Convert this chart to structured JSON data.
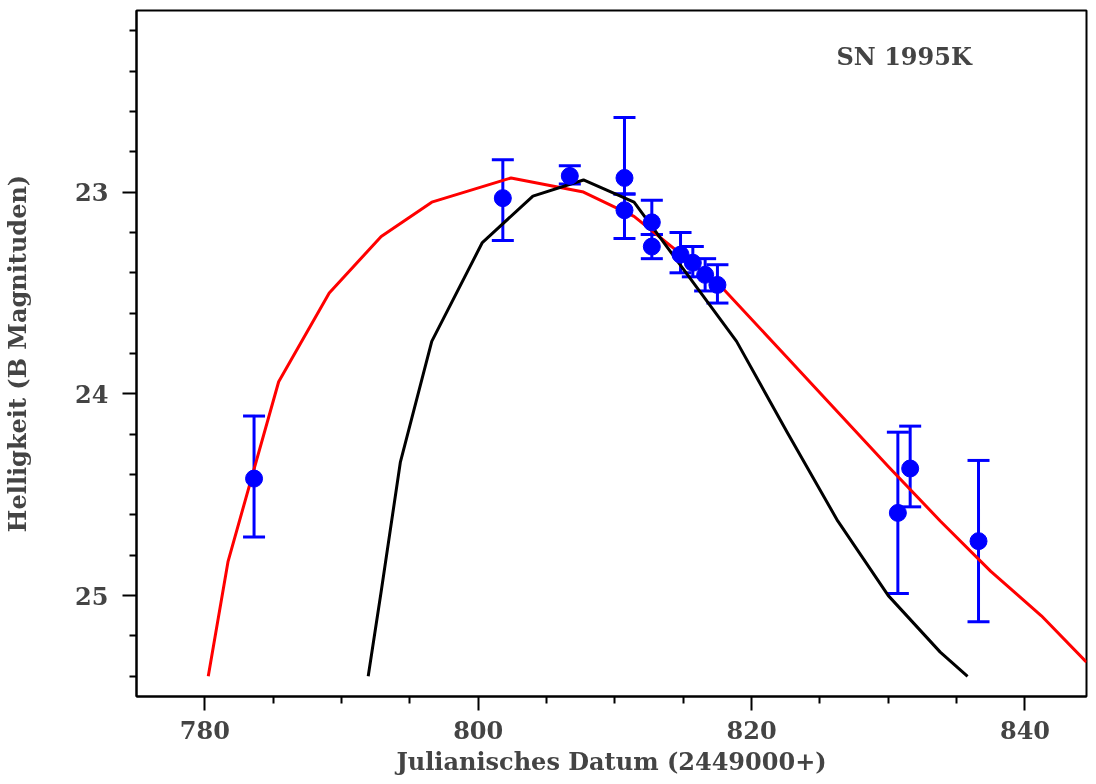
{
  "chart_data": {
    "type": "scatter",
    "xlabel": "Julianisches Datum (2449000+)",
    "ylabel": "Helligkeit (B Magnituden)",
    "annotations": [
      "SN 1995K"
    ],
    "xlim": [
      775,
      844.5
    ],
    "ylim": [
      25.5,
      22.1
    ],
    "xticks": [
      780,
      {
        "value": 785,
        "label": null
      },
      {
        "value": 790,
        "label": null
      },
      {
        "value": 795,
        "label": null
      },
      800,
      {
        "value": 805,
        "label": null
      },
      {
        "value": 810,
        "label": null
      },
      {
        "value": 815,
        "label": null
      },
      820,
      {
        "value": 825,
        "label": null
      },
      {
        "value": 830,
        "label": null
      },
      {
        "value": 835,
        "label": null
      },
      840
    ],
    "yticks": [
      {
        "value": 22.2,
        "label": null
      },
      {
        "value": 22.4,
        "label": null
      },
      {
        "value": 22.6,
        "label": null
      },
      {
        "value": 22.8,
        "label": null
      },
      23,
      {
        "value": 23.2,
        "label": null
      },
      {
        "value": 23.4,
        "label": null
      },
      {
        "value": 23.6,
        "label": null
      },
      {
        "value": 23.8,
        "label": null
      },
      24,
      {
        "value": 24.2,
        "label": null
      },
      {
        "value": 24.4,
        "label": null
      },
      {
        "value": 24.6,
        "label": null
      },
      {
        "value": 24.8,
        "label": null
      },
      25,
      {
        "value": 25.2,
        "label": null
      },
      {
        "value": 25.4,
        "label": null
      }
    ],
    "grid": false,
    "series": [
      {
        "type": "line",
        "color": "#ff0000",
        "marker": "none",
        "x": [
          780.25,
          781.7,
          785.4,
          789.1,
          792.9,
          796.6,
          802.4,
          807.7,
          811.4,
          817.8,
          822.6,
          826.3,
          830.0,
          833.8,
          837.5,
          841.2,
          844.5
        ],
        "values": [
          25.4,
          24.83,
          23.94,
          23.5,
          23.22,
          23.05,
          22.93,
          23.0,
          23.12,
          23.47,
          23.82,
          24.09,
          24.36,
          24.63,
          24.88,
          25.1,
          25.33
        ]
      },
      {
        "type": "line",
        "color": "#000000",
        "marker": "none",
        "x": [
          791.95,
          792.9,
          794.3,
          796.6,
          800.3,
          804.0,
          807.7,
          811.4,
          818.9,
          822.6,
          826.3,
          830.0,
          833.8,
          835.8
        ],
        "values": [
          25.4,
          24.98,
          24.34,
          23.74,
          23.25,
          23.02,
          22.94,
          23.05,
          23.74,
          24.19,
          24.63,
          25.0,
          25.28,
          25.4
        ]
      },
      {
        "color": "#0000ff",
        "marker": "circle",
        "x": [
          783.6,
          801.8,
          806.7,
          810.7,
          810.7,
          812.7,
          812.7,
          814.8,
          815.7,
          816.6,
          817.5,
          830.7,
          831.6,
          836.6
        ],
        "values": [
          24.42,
          23.03,
          22.92,
          22.93,
          23.09,
          23.15,
          23.27,
          23.31,
          23.35,
          23.41,
          23.46,
          24.59,
          24.37,
          24.73
        ],
        "errors": [
          [
            24.11,
            24.71
          ],
          [
            22.84,
            23.24
          ],
          [
            22.87,
            22.96
          ],
          [
            22.63,
            23.01
          ],
          [
            23.01,
            23.23
          ],
          [
            23.04,
            23.21
          ],
          [
            23.21,
            23.33
          ],
          [
            23.2,
            23.4
          ],
          [
            23.27,
            23.42
          ],
          [
            23.33,
            23.49
          ],
          [
            23.36,
            23.55
          ],
          [
            24.19,
            24.99
          ],
          [
            24.16,
            24.56
          ],
          [
            24.33,
            25.13
          ]
        ]
      }
    ]
  }
}
